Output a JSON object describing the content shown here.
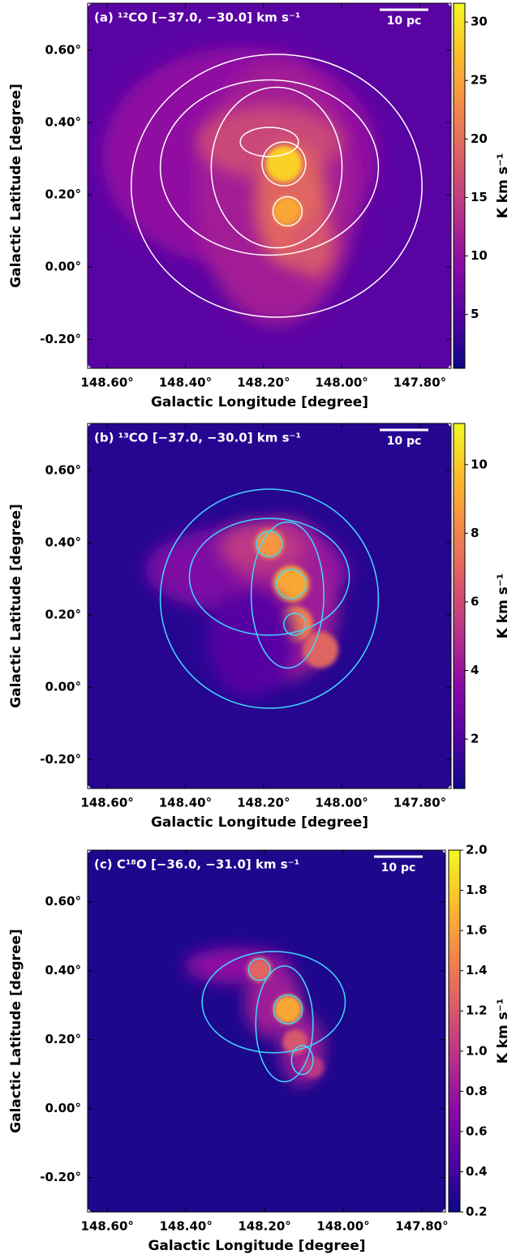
{
  "chart_data": [
    {
      "type": "heatmap",
      "title": "(a) ¹²CO [−37.0, −30.0] km s⁻¹",
      "xlabel": "Galactic Longitude [degree]",
      "ylabel": "Galactic Latitude [degree]",
      "xlim": [
        148.65,
        147.72
      ],
      "ylim": [
        -0.28,
        0.73
      ],
      "xticks": [
        {
          "value": 148.6,
          "label": "148.60°"
        },
        {
          "value": 148.4,
          "label": "148.40°"
        },
        {
          "value": 148.2,
          "label": "148.20°"
        },
        {
          "value": 148.0,
          "label": "148.00°"
        },
        {
          "value": 147.8,
          "label": "147.80°"
        }
      ],
      "yticks": [
        {
          "value": -0.2,
          "label": "-0.20°"
        },
        {
          "value": 0,
          "label": "0.00°"
        },
        {
          "value": 0.2,
          "label": "0.20°"
        },
        {
          "value": 0.4,
          "label": "0.40°"
        },
        {
          "value": 0.6,
          "label": "0.60°"
        }
      ],
      "colormap": "plasma",
      "clim": [
        0.4,
        31.6
      ],
      "cticks": [
        5,
        10,
        15,
        20,
        25,
        30
      ],
      "colorbar_label": "K km s⁻¹",
      "contour_color": "#ffffff",
      "scalebar_label": "10 pc"
    },
    {
      "type": "heatmap",
      "title": "(b) ¹³CO [−37.0, −30.0] km s⁻¹",
      "xlabel": "Galactic Longitude [degree]",
      "ylabel": "Galactic Latitude [degree]",
      "xlim": [
        148.65,
        147.72
      ],
      "ylim": [
        -0.28,
        0.73
      ],
      "xticks": [
        {
          "value": 148.6,
          "label": "148.60°"
        },
        {
          "value": 148.4,
          "label": "148.40°"
        },
        {
          "value": 148.2,
          "label": "148.20°"
        },
        {
          "value": 148.0,
          "label": "148.00°"
        },
        {
          "value": 147.8,
          "label": "147.80°"
        }
      ],
      "yticks": [
        {
          "value": -0.2,
          "label": "-0.20°"
        },
        {
          "value": 0,
          "label": "0.00°"
        },
        {
          "value": 0.2,
          "label": "0.20°"
        },
        {
          "value": 0.4,
          "label": "0.40°"
        },
        {
          "value": 0.6,
          "label": "0.60°"
        }
      ],
      "colormap": "plasma",
      "clim": [
        0.56,
        11.2
      ],
      "cticks": [
        2,
        4,
        6,
        8,
        10
      ],
      "colorbar_label": "K km s⁻¹",
      "contour_color": "#40d8ff",
      "scalebar_label": "10 pc"
    },
    {
      "type": "heatmap",
      "title": "(c) C¹⁸O [−36.0, −31.0] km s⁻¹",
      "xlabel": "Galactic Longitude [degree]",
      "ylabel": "Galactic Latitude [degree]",
      "xlim": [
        148.65,
        147.74
      ],
      "ylim": [
        -0.3,
        0.75
      ],
      "xticks": [
        {
          "value": 148.6,
          "label": "148.60°"
        },
        {
          "value": 148.4,
          "label": "148.40°"
        },
        {
          "value": 148.2,
          "label": "148.20°"
        },
        {
          "value": 148.0,
          "label": "148.00°"
        },
        {
          "value": 147.8,
          "label": "147.80°"
        }
      ],
      "yticks": [
        {
          "value": -0.2,
          "label": "-0.20°"
        },
        {
          "value": 0,
          "label": "0.00°"
        },
        {
          "value": 0.2,
          "label": "0.20°"
        },
        {
          "value": 0.4,
          "label": "0.40°"
        },
        {
          "value": 0.6,
          "label": "0.60°"
        }
      ],
      "colormap": "plasma",
      "clim": [
        0.2,
        2.0
      ],
      "cticks": [
        0.2,
        0.4,
        0.6,
        0.8,
        {
          "value": 1,
          "label": "1.0"
        },
        1.2,
        1.4,
        1.6,
        1.8,
        {
          "value": 2,
          "label": "2.0"
        }
      ],
      "colorbar_label": "K km s⁻¹",
      "contour_color": "#40d8ff",
      "scalebar_label": "10 pc"
    }
  ]
}
